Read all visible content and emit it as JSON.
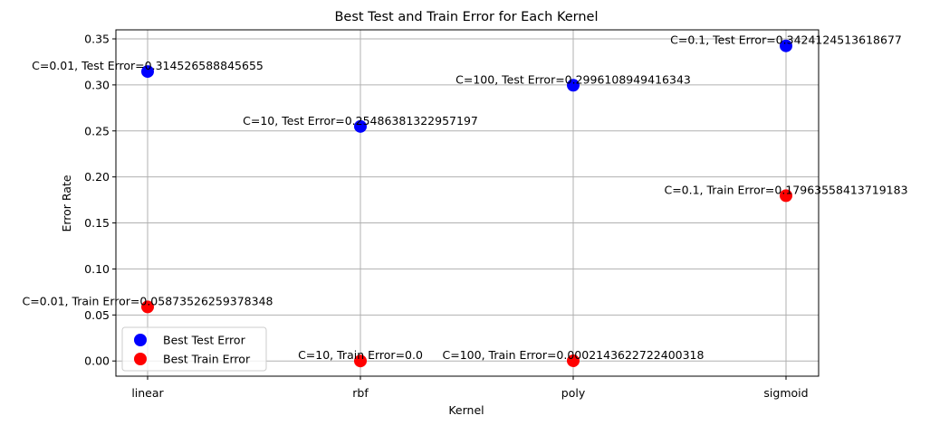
{
  "chart_data": {
    "type": "scatter",
    "title": "Best Test and Train Error for Each Kernel",
    "xlabel": "Kernel",
    "ylabel": "Error Rate",
    "categories": [
      "linear",
      "rbf",
      "poly",
      "sigmoid"
    ],
    "ylim": [
      -0.018,
      0.36
    ],
    "yticks": [
      "0.00",
      "0.05",
      "0.10",
      "0.15",
      "0.20",
      "0.25",
      "0.30",
      "0.35"
    ],
    "grid": true,
    "legend_position": "lower-left",
    "series": [
      {
        "name": "Best Test Error",
        "color": "#0000ff",
        "values": [
          0.314526588845655,
          0.25486381322957197,
          0.2996108949416343,
          0.3424124513618677
        ],
        "labels": [
          "C=0.01, Test Error=0.314526588845655",
          "C=10, Test Error=0.25486381322957197",
          "C=100, Test Error=0.2996108949416343",
          "C=0.1, Test Error=0.3424124513618677"
        ]
      },
      {
        "name": "Best Train Error",
        "color": "#ff0000",
        "values": [
          0.05873526259378348,
          0.0,
          0.0002143622722400318,
          0.17963558413719183
        ],
        "labels": [
          "C=0.01, Train Error=0.05873526259378348",
          "C=10, Train Error=0.0",
          "C=100, Train Error=0.0002143622722400318",
          "C=0.1, Train Error=0.17963558413719183"
        ]
      }
    ]
  }
}
